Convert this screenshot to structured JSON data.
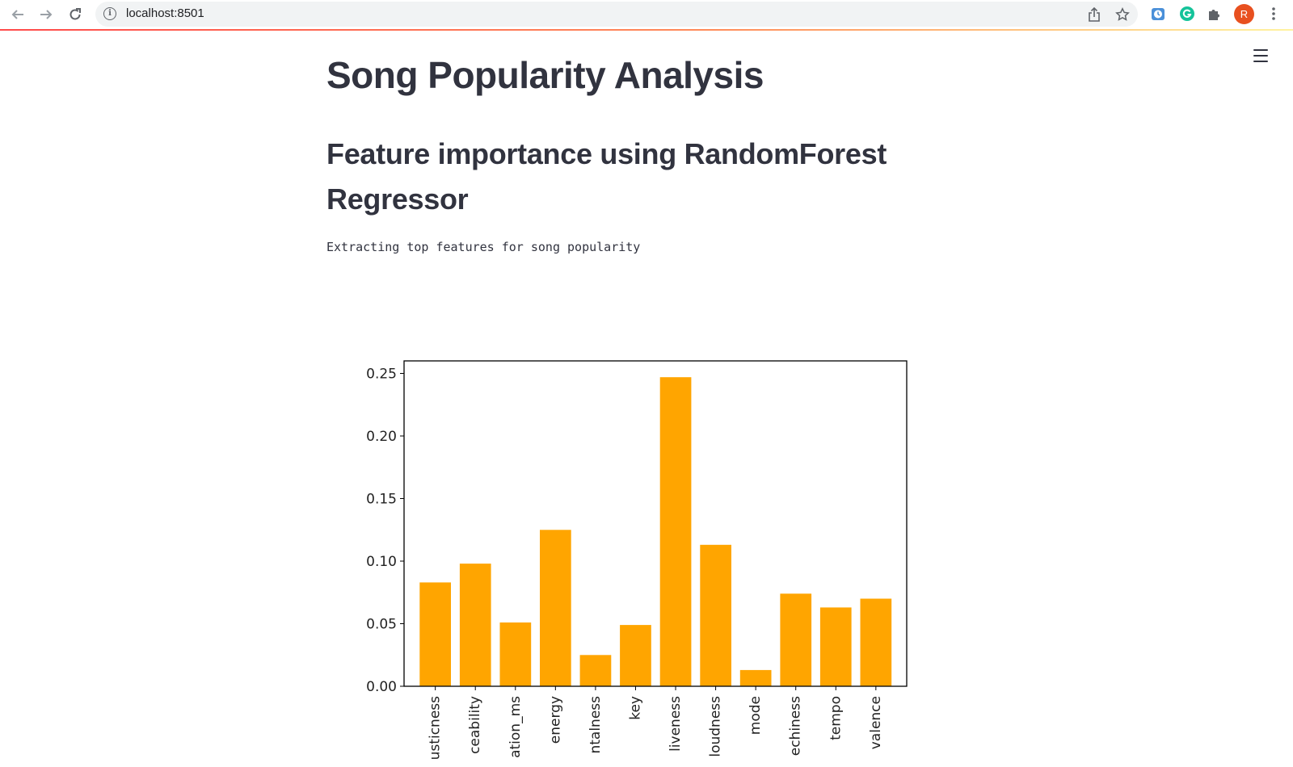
{
  "browser": {
    "url": "localhost:8501",
    "profile_initial": "R",
    "icons": [
      "back-arrow-icon",
      "forward-arrow-icon",
      "reload-icon",
      "info-icon",
      "share-icon",
      "star-icon",
      "extension-clock-icon",
      "grammarly-icon",
      "puzzle-icon",
      "kebab-menu-icon"
    ]
  },
  "app": {
    "title": "Song Popularity Analysis",
    "subtitle": "Feature importance using RandomForest Regressor",
    "caption": "Extracting top features for song popularity"
  },
  "colors": {
    "bar": "#FFA500",
    "text": "#31333F",
    "accent_start": "#FF4B4B"
  },
  "chart_data": {
    "type": "bar",
    "categories": [
      "acousticness",
      "danceability",
      "duration_ms",
      "energy",
      "instrumentalness",
      "key",
      "liveness",
      "loudness",
      "mode",
      "speechiness",
      "tempo",
      "valence"
    ],
    "visible_tick_labels": [
      "usticness",
      "ceability",
      "ation_ms",
      "energy",
      "ntalness",
      "key",
      "liveness",
      "loudness",
      "mode",
      "echiness",
      "tempo",
      "valence"
    ],
    "values": [
      0.083,
      0.098,
      0.051,
      0.125,
      0.025,
      0.049,
      0.247,
      0.113,
      0.013,
      0.074,
      0.063,
      0.07
    ],
    "yticks": [
      "0.00",
      "0.05",
      "0.10",
      "0.15",
      "0.20",
      "0.25"
    ],
    "ylim": [
      0,
      0.26
    ],
    "title": "",
    "xlabel": "",
    "ylabel": "",
    "grid": false
  }
}
